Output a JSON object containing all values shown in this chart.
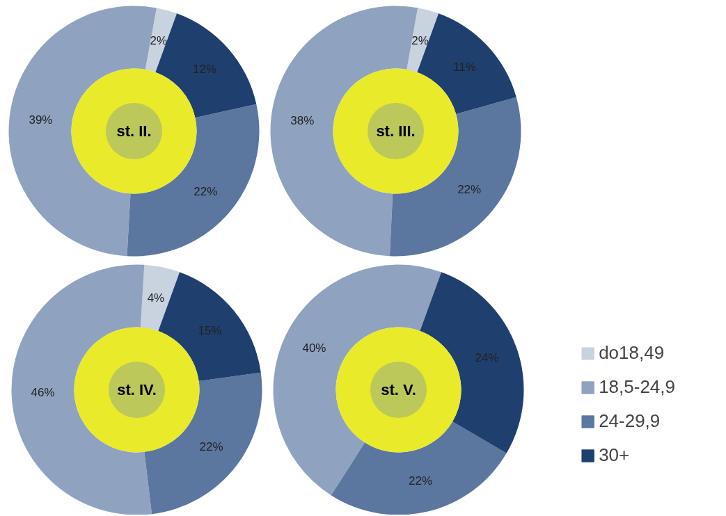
{
  "chart_data": [
    {
      "type": "donut",
      "title": "st. II.",
      "categories": [
        "do18,49",
        "18,5-24,9",
        "24-29,9",
        "30+"
      ],
      "values": [
        2,
        39,
        22,
        12
      ],
      "value_labels": [
        "2%",
        "39%",
        "22%",
        "12%"
      ],
      "colors": [
        "#c9d3e0",
        "#8fa3c0",
        "#5b779f",
        "#1f3f6e"
      ],
      "legend": "bottom right"
    },
    {
      "type": "donut",
      "title": "st. III.",
      "categories": [
        null,
        null,
        null,
        null
      ],
      "values": [
        2,
        38,
        22,
        11
      ],
      "value_labels": [
        "2%",
        "38%",
        "22%",
        "11%"
      ],
      "colors": [
        "#c9d3e0",
        "#8fa3c0",
        "#5b779f",
        "#1f3f6e"
      ]
    },
    {
      "type": "donut",
      "title": "st. IV.",
      "categories": [
        null,
        null,
        null,
        null
      ],
      "values": [
        4,
        46,
        22,
        15
      ],
      "value_labels": [
        "4%",
        "46%",
        "22%",
        "15%"
      ],
      "colors": [
        "#c9d3e0",
        "#8fa3c0",
        "#5b779f",
        "#1f3f6e"
      ]
    },
    {
      "type": "donut",
      "title": "st. V.",
      "categories": [
        null,
        null,
        null,
        null
      ],
      "values": [
        0,
        40,
        22,
        24
      ],
      "value_labels": [
        null,
        "40%",
        "22%",
        "24%"
      ],
      "colors": [
        "#c9d3e0",
        "#8fa3c0",
        "#5b779f",
        "#1f3f6e"
      ]
    }
  ]
}
